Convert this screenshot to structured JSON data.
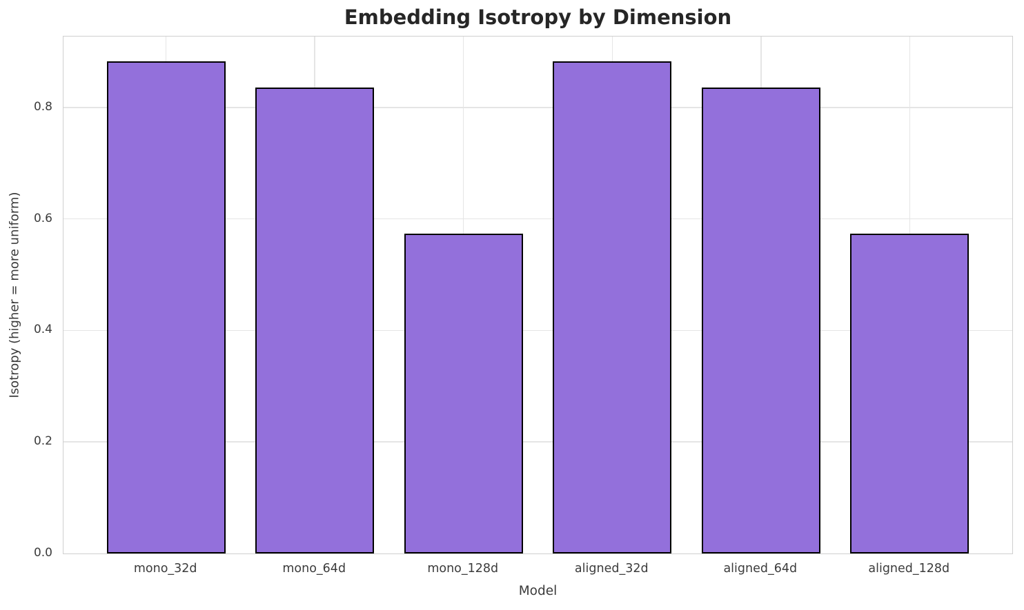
{
  "title": "Embedding Isotropy by Dimension",
  "chart_data": {
    "type": "bar",
    "title": "Embedding Isotropy by Dimension",
    "xlabel": "Model",
    "ylabel": "Isotropy (higher = more uniform)",
    "categories": [
      "mono_32d",
      "mono_64d",
      "mono_128d",
      "aligned_32d",
      "aligned_64d",
      "aligned_128d"
    ],
    "values": [
      0.883,
      0.835,
      0.573,
      0.883,
      0.835,
      0.573
    ],
    "ylim": [
      0,
      0.927
    ],
    "yticks": [
      0.0,
      0.2,
      0.4,
      0.6,
      0.8
    ],
    "ytick_labels": [
      "0.0",
      "0.2",
      "0.4",
      "0.6",
      "0.8"
    ],
    "grid": true,
    "legend": false,
    "bar_color": "#9370DB",
    "bar_edge_color": "#000000",
    "grid_color": "#e5e5e5",
    "spine_color": "#cfcfcf",
    "title_color": "#262626",
    "tick_color": "#3b3b3b",
    "background_color": "#ffffff"
  }
}
